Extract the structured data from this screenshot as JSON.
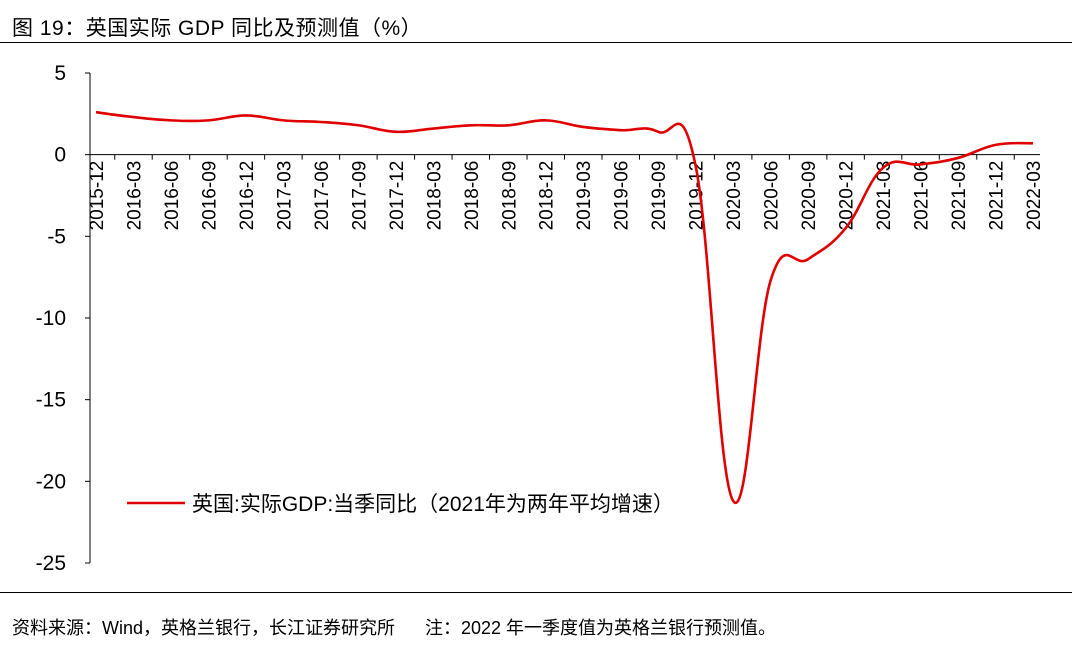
{
  "header": {
    "title": "图 19：英国实际 GDP 同比及预测值（%）"
  },
  "footer": {
    "source": "资料来源：Wind，英格兰银行，长江证券研究所",
    "note": "注：2022 年一季度值为英格兰银行预测值。"
  },
  "colors": {
    "series": "#e00000",
    "axis": "#000000"
  },
  "chart_data": {
    "type": "line",
    "title": "",
    "xlabel": "",
    "ylabel": "",
    "ylim": [
      -25,
      5
    ],
    "yticks": [
      5,
      0,
      -5,
      -10,
      -15,
      -20,
      -25
    ],
    "categories": [
      "2015-12",
      "2016-03",
      "2016-06",
      "2016-09",
      "2016-12",
      "2017-03",
      "2017-06",
      "2017-09",
      "2017-12",
      "2018-03",
      "2018-06",
      "2018-09",
      "2018-12",
      "2019-03",
      "2019-06",
      "2019-09",
      "2019-12",
      "2020-03",
      "2020-06",
      "2020-09",
      "2020-12",
      "2021-03",
      "2021-06",
      "2021-09",
      "2021-12",
      "2022-03"
    ],
    "legend_position": "lower-left",
    "series": [
      {
        "name": "英国:实际GDP:当季同比（2021年为两年平均增速）",
        "values": [
          2.6,
          2.3,
          2.1,
          2.1,
          2.4,
          2.1,
          2.0,
          1.8,
          1.4,
          1.6,
          1.8,
          1.8,
          2.1,
          1.7,
          1.5,
          1.4,
          -0.7,
          -21.2,
          -7.7,
          -6.4,
          -4.5,
          -0.8,
          -0.6,
          -0.2,
          0.6,
          0.7
        ]
      }
    ]
  }
}
